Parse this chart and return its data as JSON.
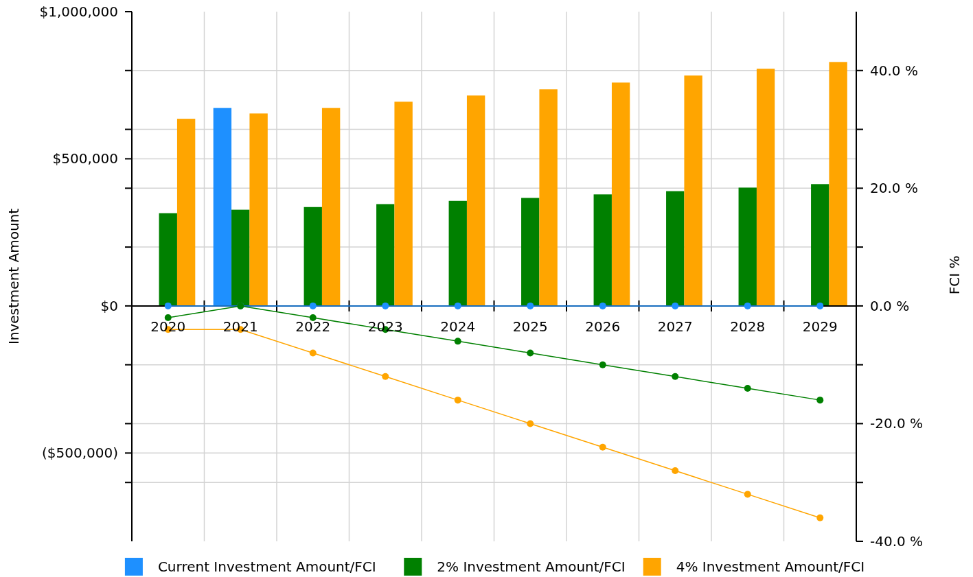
{
  "chart_data": {
    "type": "bar",
    "ylabel": "Investment  Amount",
    "y2label": "FCI %",
    "categories": [
      "2020",
      "2021",
      "2022",
      "2023",
      "2024",
      "2025",
      "2026",
      "2027",
      "2028",
      "2029"
    ],
    "series": [
      {
        "name": "Current Investment Amount/FCI",
        "color": "#1e90ff",
        "values": [
          0,
          673000,
          0,
          0,
          0,
          0,
          0,
          0,
          0,
          0
        ]
      },
      {
        "name": "2% Investment Amount/FCI",
        "color": "#008000",
        "values": [
          315000,
          327000,
          336000,
          346000,
          357000,
          367000,
          379000,
          390000,
          402000,
          414000
        ]
      },
      {
        "name": "4% Investment Amount/FCI",
        "color": "#ffa500",
        "values": [
          636000,
          654000,
          673000,
          694000,
          715000,
          736000,
          759000,
          783000,
          806000,
          829000
        ]
      },
      {
        "type": "line",
        "axis": "y2",
        "color": "#1e90ff",
        "values": [
          0,
          0,
          0,
          0,
          0,
          0,
          0,
          0,
          0,
          0
        ]
      },
      {
        "type": "line",
        "axis": "y2",
        "color": "#008000",
        "values": [
          -2,
          0,
          -2,
          -4,
          -6,
          -8,
          -10,
          -12,
          -14,
          -16
        ]
      },
      {
        "type": "line",
        "axis": "y2",
        "color": "#ffa500",
        "values": [
          -4,
          -4,
          -8,
          -12,
          -16,
          -20,
          -24,
          -28,
          -32,
          -36
        ]
      }
    ],
    "ylim": [
      -800000,
      1000000
    ],
    "yticks": [
      {
        "value": 1000000,
        "label": "$1,000,000"
      },
      {
        "value": 800000,
        "label": null
      },
      {
        "value": 600000,
        "label": null
      },
      {
        "value": 500000,
        "label": "$500,000"
      },
      {
        "value": 400000,
        "label": null
      },
      {
        "value": 200000,
        "label": null
      },
      {
        "value": 0,
        "label": "$0"
      },
      {
        "value": -200000,
        "label": null
      },
      {
        "value": -400000,
        "label": null
      },
      {
        "value": -500000,
        "label": "($500,000)"
      },
      {
        "value": -600000,
        "label": null
      }
    ],
    "y2lim": [
      -40,
      50
    ],
    "y2ticks": [
      {
        "value": 40,
        "label": "40.0 %"
      },
      {
        "value": 30,
        "label": null
      },
      {
        "value": 20,
        "label": "20.0 %"
      },
      {
        "value": 10,
        "label": null
      },
      {
        "value": 0,
        "label": "0.0 %"
      },
      {
        "value": -10,
        "label": null
      },
      {
        "value": -20,
        "label": "-20.0 %"
      },
      {
        "value": -30,
        "label": null
      },
      {
        "value": -40,
        "label": "-40.0 %"
      }
    ],
    "grid": true,
    "legend": "bottom",
    "marker": "circle",
    "line_style": "solid"
  }
}
